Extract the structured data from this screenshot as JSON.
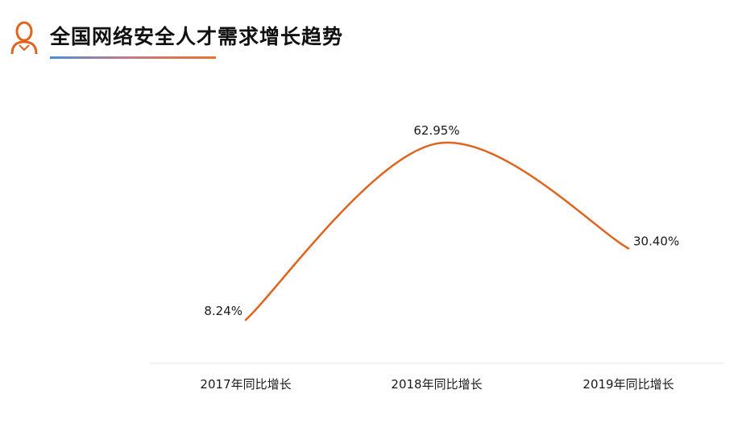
{
  "header": {
    "title": "全国网络安全人才需求增长趋势",
    "icon": "person-icon",
    "accent_color": "#e0641e"
  },
  "chart_data": {
    "type": "line",
    "title": "全国网络安全人才需求增长趋势",
    "categories": [
      "2017年同比增长",
      "2018年同比增长",
      "2019年同比增长"
    ],
    "series": [
      {
        "values": [
          8.24,
          62.95,
          30.4
        ],
        "labels": [
          "8.24%",
          "62.95%",
          "30.40%"
        ]
      }
    ],
    "ylim": [
      0,
      70
    ],
    "unit": "%",
    "smooth": true,
    "grid": false,
    "line_color": "#e0641e",
    "axis_color": "#e6e6e6"
  }
}
